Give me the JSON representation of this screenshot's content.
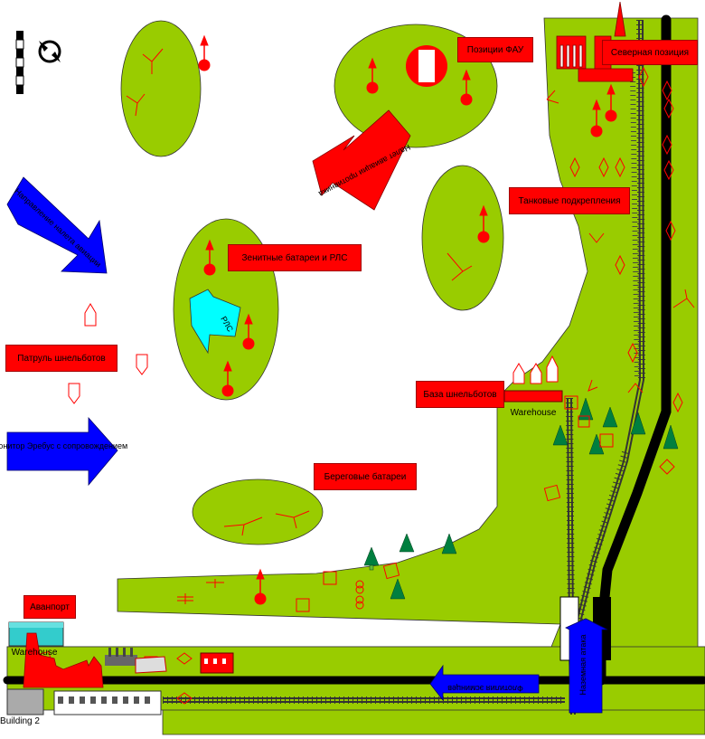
{
  "labels": {
    "faa": "Позиции ФАУ",
    "north": "Северная позиция",
    "enemy_attack": "Налет авиации противника",
    "tank": "Танковые подкрепления",
    "naval": "Направление налета авиации",
    "aa": "Зенитные батареи и РЛС",
    "rls": "РЛС",
    "patrol": "Патруль шнельботов",
    "sbase": "База шнельботов",
    "monitor": "Монитор Эребус с сопровождением",
    "coastal": "Береговые батареи",
    "avanport": "Аванпорт",
    "warehouse1": "Warehouse",
    "warehouse2": "Warehouse",
    "building2": "Building 2",
    "flotilla": "Флотилия эсминцев",
    "land_strike": "Наземная атака"
  },
  "colors": {
    "land": "#99cc00",
    "units": "#ff0000",
    "arrow_blue": "#0000ff",
    "arrow_cyan": "#00ffff",
    "tree": "#007f3f",
    "road": "#000000"
  }
}
